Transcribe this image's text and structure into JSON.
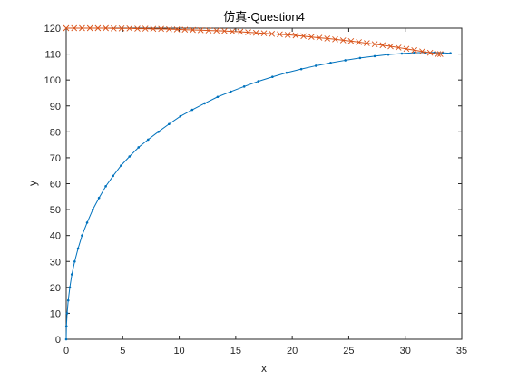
{
  "chart_data": {
    "type": "line",
    "title": "仿真-Question4",
    "xlabel": "x",
    "ylabel": "y",
    "xlim": [
      0,
      35
    ],
    "ylim": [
      0,
      120
    ],
    "xticks": [
      "0",
      "5",
      "10",
      "15",
      "20",
      "25",
      "30",
      "35"
    ],
    "yticks": [
      "0",
      "10",
      "20",
      "30",
      "40",
      "50",
      "60",
      "70",
      "80",
      "90",
      "100",
      "110",
      "120"
    ],
    "grid": false,
    "legend": "none",
    "series": [
      {
        "color": "#0072BD",
        "marker": "dot",
        "x": [
          0,
          0.02,
          0.08,
          0.18,
          0.32,
          0.5,
          0.75,
          1.05,
          1.4,
          1.85,
          2.35,
          2.9,
          3.5,
          4.15,
          4.85,
          5.6,
          6.4,
          7.25,
          8.15,
          9.1,
          10.1,
          11.15,
          12.25,
          13.4,
          14.55,
          15.75,
          17.0,
          18.25,
          19.5,
          20.8,
          22.1,
          23.4,
          24.7,
          26.0,
          27.3,
          28.5,
          29.7,
          30.8,
          31.8,
          32.6,
          33.3,
          34.0
        ],
        "y": [
          0,
          5,
          10,
          15,
          20,
          25,
          30,
          35,
          40,
          45,
          50,
          54.5,
          59,
          63,
          67,
          70.5,
          74,
          77,
          80,
          83,
          86,
          88.5,
          91,
          93.5,
          95.5,
          97.5,
          99.5,
          101.2,
          102.8,
          104.2,
          105.5,
          106.6,
          107.6,
          108.5,
          109.2,
          109.8,
          110.2,
          110.5,
          110.6,
          110.6,
          110.5,
          110.3
        ]
      },
      {
        "color": "#D95319",
        "marker": "x",
        "x": [
          0,
          0.7,
          1.4,
          2.1,
          2.8,
          3.5,
          4.2,
          4.9,
          5.6,
          6.3,
          7.0,
          7.7,
          8.4,
          9.1,
          9.8,
          10.5,
          11.2,
          11.9,
          12.6,
          13.3,
          14.0,
          14.7,
          15.4,
          16.1,
          16.8,
          17.5,
          18.2,
          18.9,
          19.6,
          20.3,
          21.0,
          21.7,
          22.4,
          23.1,
          23.8,
          24.5,
          25.2,
          25.9,
          26.6,
          27.3,
          28.0,
          28.7,
          29.4,
          30.1,
          30.8,
          31.5,
          32.2,
          32.9,
          33.1
        ],
        "y": [
          120,
          120,
          120,
          120,
          120,
          120,
          119.9,
          119.9,
          119.9,
          119.8,
          119.8,
          119.7,
          119.7,
          119.6,
          119.5,
          119.4,
          119.3,
          119.2,
          119.1,
          119.0,
          118.9,
          118.7,
          118.6,
          118.4,
          118.2,
          118.0,
          117.8,
          117.6,
          117.4,
          117.2,
          116.9,
          116.6,
          116.3,
          116.0,
          115.7,
          115.3,
          115.0,
          114.6,
          114.2,
          113.8,
          113.4,
          113.0,
          112.5,
          112.0,
          111.5,
          111.0,
          110.5,
          110.0,
          110.0
        ]
      }
    ]
  }
}
